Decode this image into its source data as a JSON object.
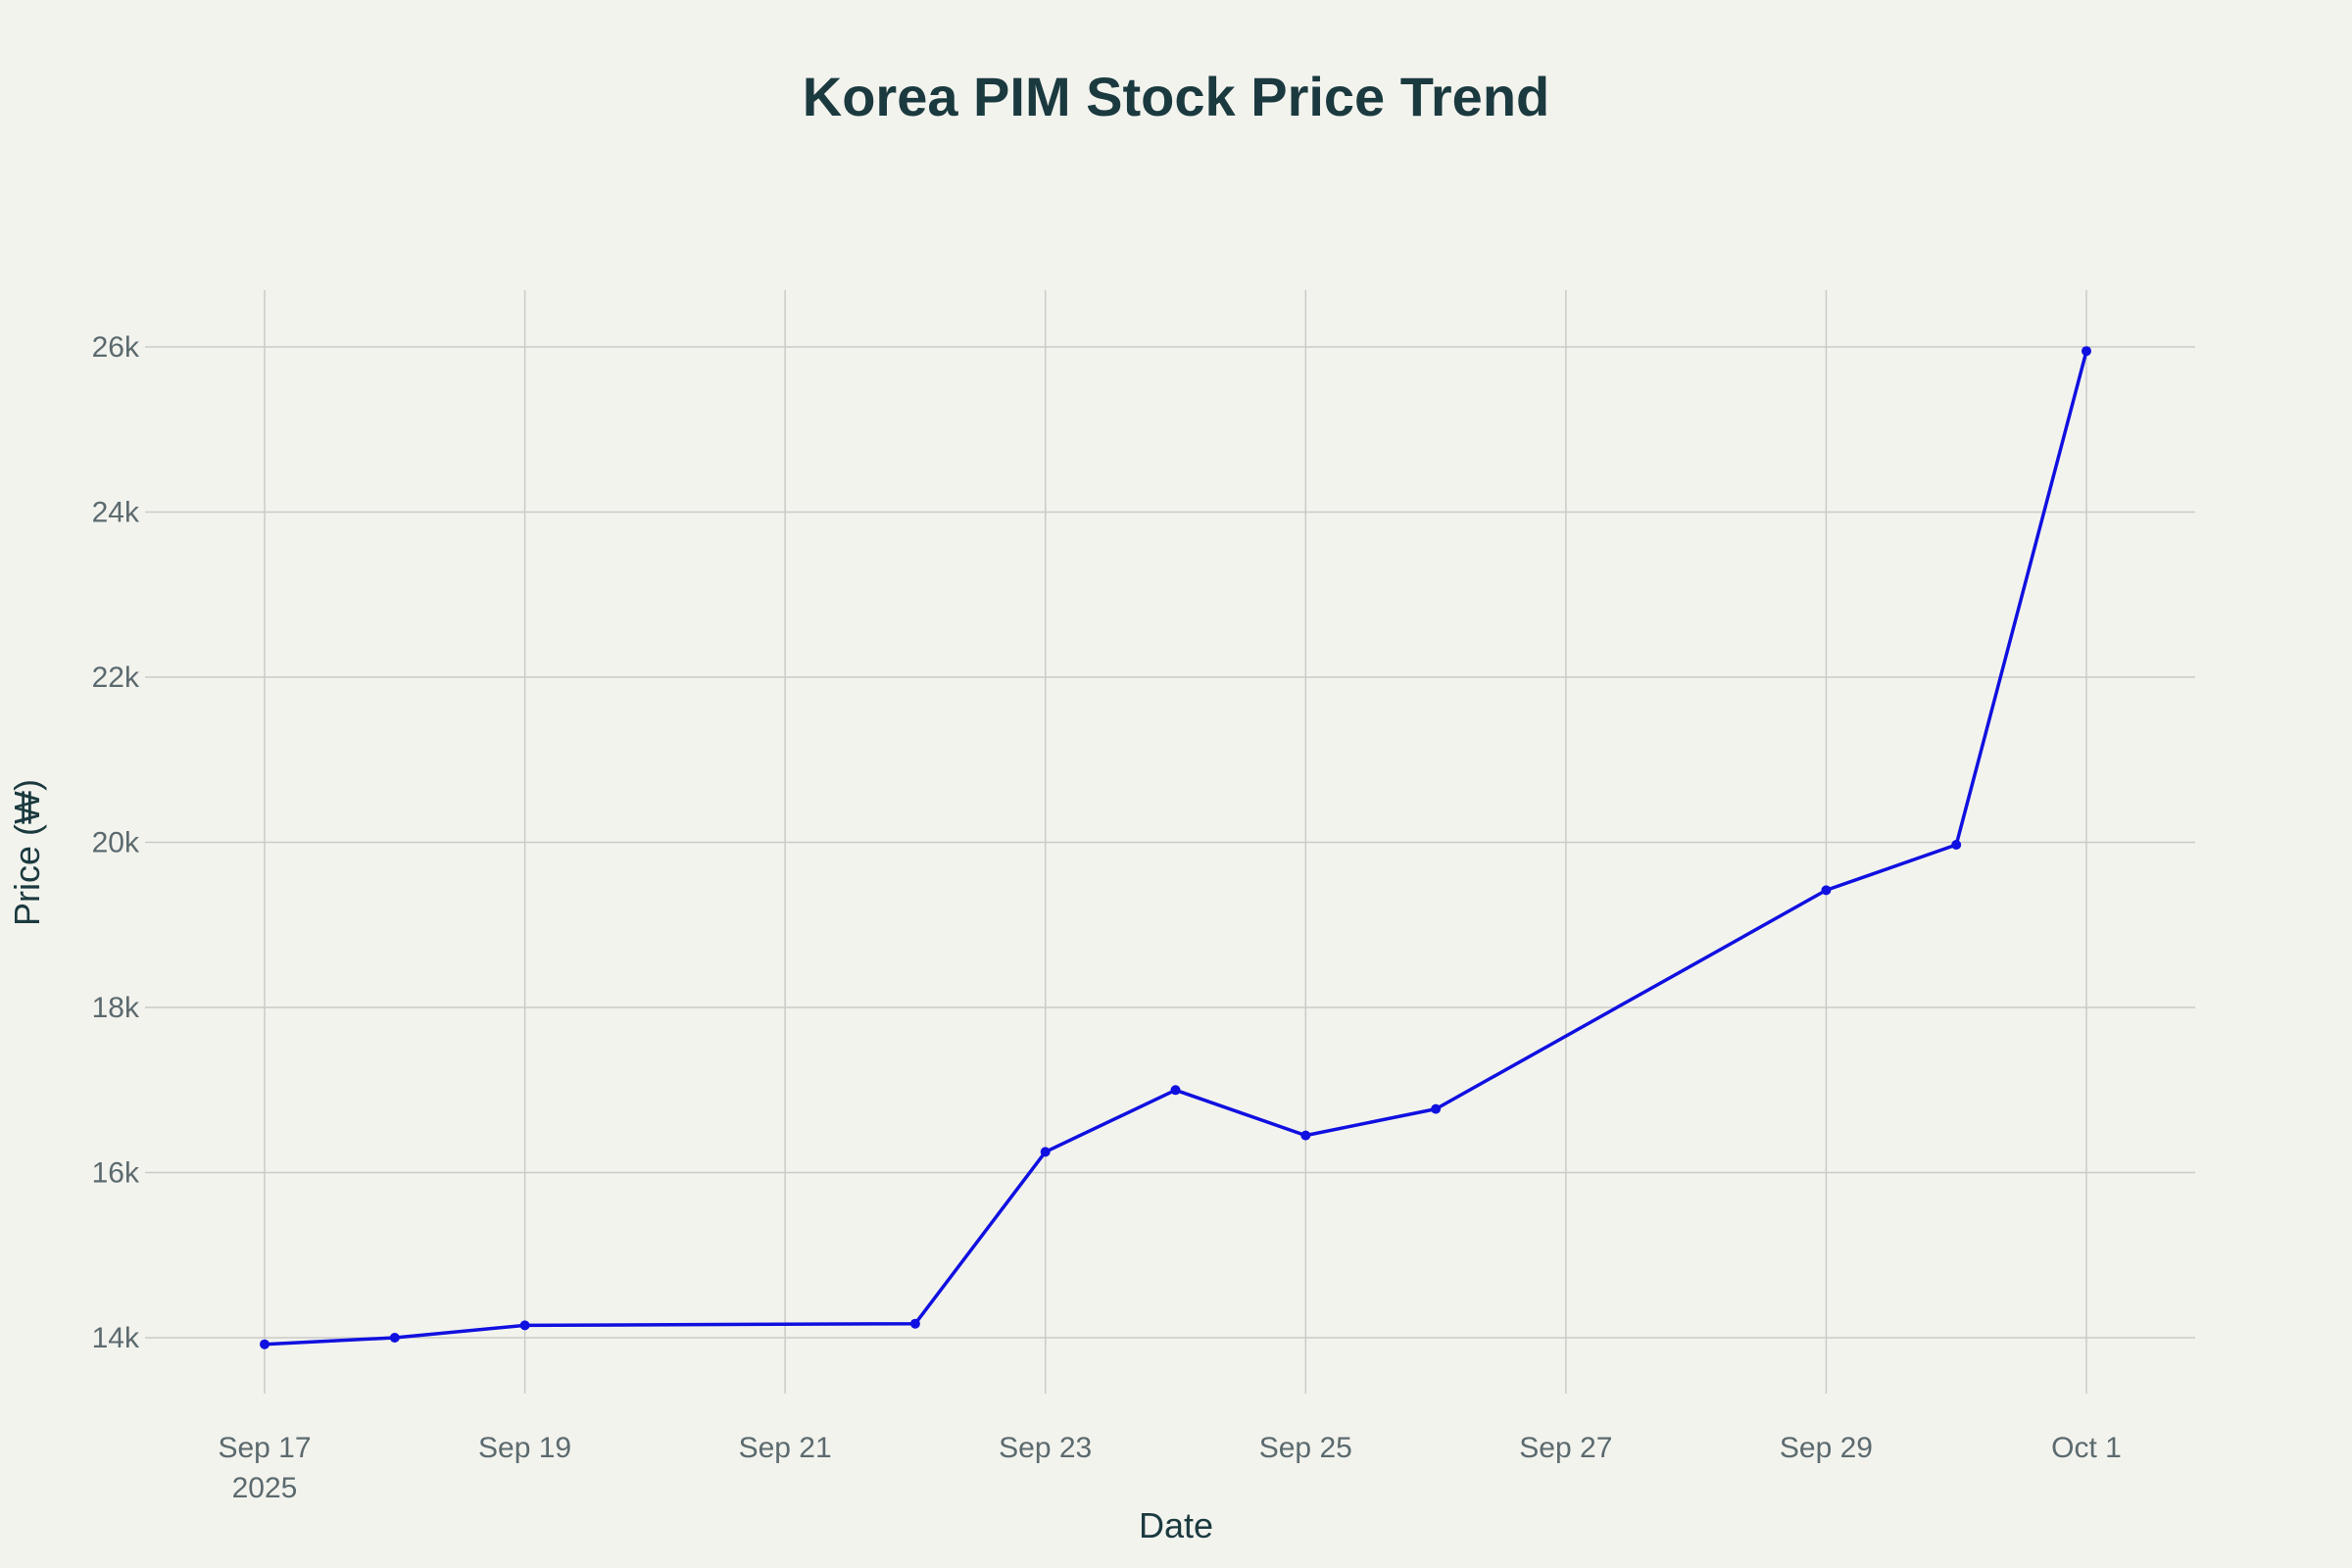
{
  "chart_data": {
    "type": "line",
    "title": "Korea PIM Stock Price Trend",
    "xlabel": "Date",
    "ylabel": "Price (₩)",
    "x": [
      "2025-09-17",
      "2025-09-18",
      "2025-09-19",
      "2025-09-22",
      "2025-09-23",
      "2025-09-24",
      "2025-09-25",
      "2025-09-26",
      "2025-09-29",
      "2025-09-30",
      "2025-10-01"
    ],
    "series": [
      {
        "values": [
          13920,
          14000,
          14150,
          14170,
          16250,
          17000,
          16450,
          16770,
          19420,
          19970,
          25950
        ]
      }
    ],
    "xlim": [
      "2025-09-16",
      "2025-10-01"
    ],
    "ylim": [
      13200,
      26700
    ],
    "x_ticks": [
      {
        "date": "2025-09-17",
        "label": "Sep 17",
        "sublabel": "2025"
      },
      {
        "date": "2025-09-19",
        "label": "Sep 19"
      },
      {
        "date": "2025-09-21",
        "label": "Sep 21"
      },
      {
        "date": "2025-09-23",
        "label": "Sep 23"
      },
      {
        "date": "2025-09-25",
        "label": "Sep 25"
      },
      {
        "date": "2025-09-27",
        "label": "Sep 27"
      },
      {
        "date": "2025-09-29",
        "label": "Sep 29"
      },
      {
        "date": "2025-10-01",
        "label": "Oct 1"
      }
    ],
    "y_ticks": [
      {
        "value": 14000,
        "label": "14k"
      },
      {
        "value": 16000,
        "label": "16k"
      },
      {
        "value": 18000,
        "label": "18k"
      },
      {
        "value": 20000,
        "label": "20k"
      },
      {
        "value": 22000,
        "label": "22k"
      },
      {
        "value": 24000,
        "label": "24k"
      },
      {
        "value": 26000,
        "label": "26k"
      }
    ],
    "grid": true,
    "legend": "none",
    "colors": {
      "line": "#1010e0",
      "background": "#f3f3ee",
      "grid": "#c9cbc6"
    }
  }
}
